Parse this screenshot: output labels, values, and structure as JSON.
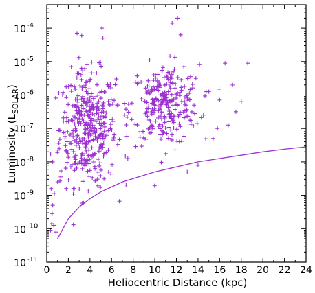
{
  "chart_data": {
    "type": "scatter",
    "title": "",
    "xlabel": "Heliocentric Distance (kpc)",
    "ylabel": {
      "main": "Luminosity (L",
      "subscript": "SOLAR",
      "close": ")"
    },
    "xlim": [
      0,
      24
    ],
    "ylim_log10": [
      -11,
      -3.3
    ],
    "y_scale": "log",
    "grid": false,
    "x_ticks": [
      0,
      2,
      4,
      6,
      8,
      10,
      12,
      14,
      16,
      18,
      20,
      22,
      24
    ],
    "y_tick_exponents": [
      -11,
      -10,
      -9,
      -8,
      -7,
      -6,
      -5,
      -4
    ],
    "y_tick_base": "10",
    "marker_color": "#9b30d0",
    "line_color": "#9b30d0",
    "scatter_clusters": [
      {
        "x_center": 3.8,
        "x_spread": 1.3,
        "log_y_center": -7.0,
        "log_y_spread": 0.85,
        "count": 420
      },
      {
        "x_center": 10.9,
        "x_spread": 1.6,
        "log_y_center": -6.3,
        "log_y_spread": 0.6,
        "count": 280
      }
    ],
    "scatter_outliers": [
      {
        "x": 0.35,
        "log_y": -10.05
      },
      {
        "x": 0.45,
        "log_y": -9.85
      },
      {
        "x": 0.5,
        "log_y": -9.55
      },
      {
        "x": 0.55,
        "log_y": -9.3
      },
      {
        "x": 0.65,
        "log_y": -9.9
      },
      {
        "x": 0.7,
        "log_y": -8.95
      },
      {
        "x": 0.85,
        "log_y": -10.1
      },
      {
        "x": 0.4,
        "log_y": -8.8
      },
      {
        "x": 0.55,
        "log_y": -8.0
      },
      {
        "x": 2.8,
        "log_y": -4.15
      },
      {
        "x": 5.1,
        "log_y": -4.0
      },
      {
        "x": 5.2,
        "log_y": -4.3
      },
      {
        "x": 11.6,
        "log_y": -3.85
      },
      {
        "x": 12.1,
        "log_y": -3.7
      },
      {
        "x": 12.4,
        "log_y": -4.2
      },
      {
        "x": 16.5,
        "log_y": -5.05
      },
      {
        "x": 18.6,
        "log_y": -5.05
      },
      {
        "x": 17.2,
        "log_y": -5.7
      },
      {
        "x": 15.0,
        "log_y": -5.9
      },
      {
        "x": 16.0,
        "log_y": -6.15
      },
      {
        "x": 18.0,
        "log_y": -6.2
      },
      {
        "x": 17.5,
        "log_y": -6.5
      },
      {
        "x": 16.8,
        "log_y": -6.9
      },
      {
        "x": 15.8,
        "log_y": -7.0
      },
      {
        "x": 14.5,
        "log_y": -6.6
      },
      {
        "x": 13.8,
        "log_y": -5.5
      },
      {
        "x": 15.4,
        "log_y": -7.3
      },
      {
        "x": 14.0,
        "log_y": -8.1
      },
      {
        "x": 13.0,
        "log_y": -8.3
      },
      {
        "x": 7.5,
        "log_y": -7.9
      },
      {
        "x": 7.2,
        "log_y": -6.6
      },
      {
        "x": 6.6,
        "log_y": -6.3
      },
      {
        "x": 1.0,
        "log_y": -8.6
      },
      {
        "x": 1.3,
        "log_y": -8.45
      },
      {
        "x": 1.8,
        "log_y": -8.8
      }
    ],
    "limit_curve": {
      "x": [
        1,
        2,
        3,
        4,
        5,
        6,
        7,
        8,
        9,
        10,
        12,
        14,
        16,
        18,
        20,
        22,
        24
      ],
      "log_y": [
        -10.3,
        -9.7,
        -9.35,
        -9.1,
        -8.9,
        -8.75,
        -8.6,
        -8.5,
        -8.4,
        -8.3,
        -8.15,
        -8.0,
        -7.9,
        -7.8,
        -7.7,
        -7.62,
        -7.55
      ]
    }
  }
}
